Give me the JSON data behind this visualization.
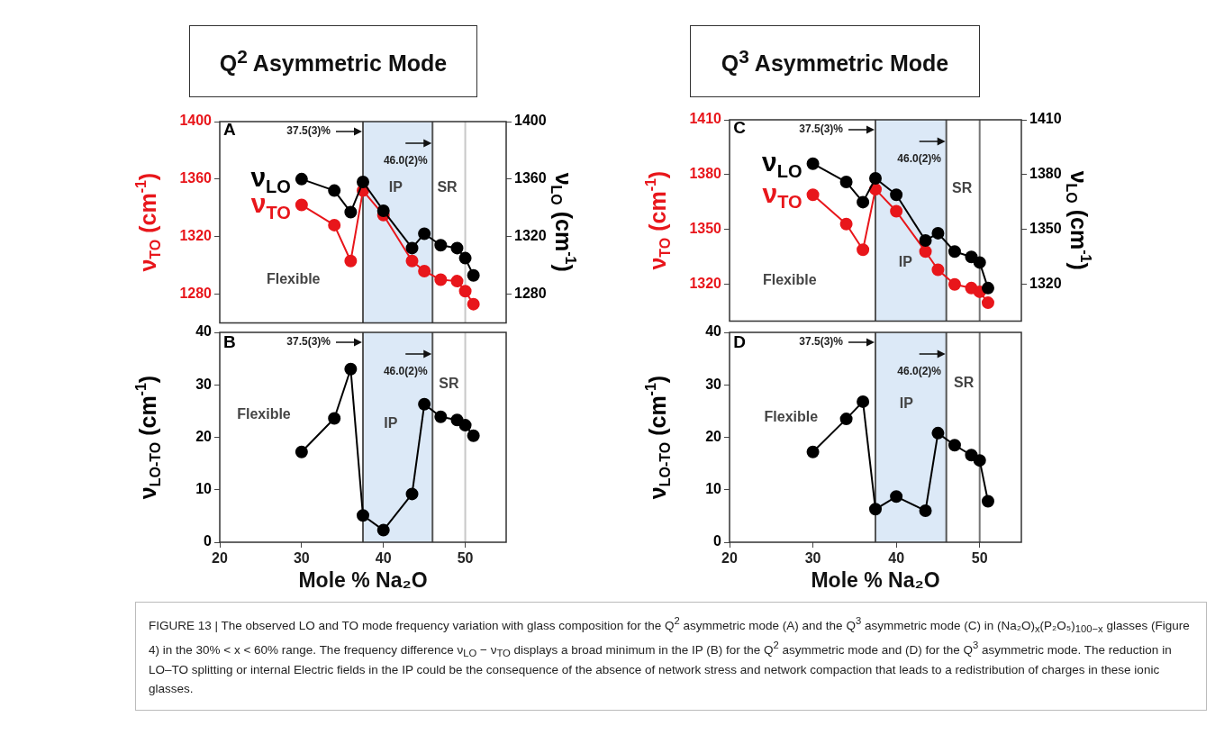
{
  "chart_data": [
    {
      "type": "line",
      "title": "Q$^{2}$ Asymmetric Mode",
      "x": [
        30,
        34,
        36,
        37.5,
        40,
        43.5,
        45,
        47,
        49,
        50,
        51
      ],
      "xlim": [
        20,
        55
      ],
      "xticks": [
        20,
        30,
        40,
        50
      ],
      "ylim": [
        1260,
        1400
      ],
      "yticks": [
        1280,
        1320,
        1360,
        1400
      ],
      "y2lim": [
        1260,
        1400
      ],
      "y2ticks": [
        1280,
        1320,
        1360,
        1400
      ],
      "ylabel": "ν$_{TO}$ (cm$^{-1}$)",
      "y2label": "ν$_{LO}$ (cm$^{-1}$)",
      "tick_labels": "y",
      "marker": "circle",
      "grid": false,
      "legend": false,
      "series": [
        {
          "name": "ν$_{LO}$",
          "color": "#000000",
          "axis": "y2",
          "values": [
            1360,
            1352,
            1337,
            1358,
            1338,
            1312,
            1322,
            1314,
            1312,
            1305,
            1293
          ]
        },
        {
          "name": "ν$_{TO}$",
          "color": "#e8161b",
          "values": [
            1342,
            1328,
            1303,
            1352,
            1335,
            1303,
            1296,
            1290,
            1289,
            1282,
            1273
          ]
        }
      ],
      "bands": [
        {
          "axis": "x",
          "from": 37.5,
          "to": 46,
          "color": "#dce9f7"
        }
      ],
      "ref_lines": [
        {
          "axis": "x",
          "value": 37.5,
          "label": "37.5(3)%",
          "color": "#555555"
        },
        {
          "axis": "x",
          "value": 46,
          "label": "46.0(2)%",
          "color": "#555555"
        },
        {
          "axis": "x",
          "value": 50,
          "color": "#c8c8c8"
        }
      ],
      "annotations": [
        "A",
        "Flexible",
        "IP",
        "SR"
      ]
    },
    {
      "type": "line",
      "x": [
        30,
        34,
        36,
        37.5,
        40,
        43.5,
        45,
        47,
        49,
        50,
        51
      ],
      "xlim": [
        20,
        55
      ],
      "xticks": [
        20,
        30,
        40,
        50
      ],
      "ylim": [
        0,
        40
      ],
      "yticks": [
        0,
        10,
        20,
        30,
        40
      ],
      "xlabel": "Mole % Na₂O",
      "ylabel": "ν$_{LO-TO}$ (cm$^{-1}$)",
      "marker": "circle",
      "grid": false,
      "legend": false,
      "series": [
        {
          "color": "#000000",
          "values": [
            17.2,
            23.6,
            33.0,
            5.1,
            2.3,
            9.2,
            26.3,
            23.9,
            23.3,
            22.3,
            20.3
          ]
        }
      ],
      "bands": [
        {
          "axis": "x",
          "from": 37.5,
          "to": 46,
          "color": "#dce9f7"
        }
      ],
      "ref_lines": [
        {
          "axis": "x",
          "value": 37.5,
          "label": "37.5(3)%",
          "color": "#555555"
        },
        {
          "axis": "x",
          "value": 46,
          "label": "46.0(2)%",
          "color": "#555555"
        },
        {
          "axis": "x",
          "value": 50,
          "color": "#c8c8c8"
        }
      ],
      "annotations": [
        "B",
        "Flexible",
        "IP",
        "SR"
      ]
    },
    {
      "type": "line",
      "title": "Q$^{3}$ Asymmetric Mode",
      "x": [
        30,
        34,
        36,
        37.5,
        40,
        43.5,
        45,
        47,
        49,
        50,
        51
      ],
      "xlim": [
        20,
        55
      ],
      "xticks": [
        20,
        30,
        40,
        50
      ],
      "ylim": [
        1300,
        1410
      ],
      "yticks": [
        1320,
        1350,
        1380,
        1410
      ],
      "y2lim": [
        1300,
        1410
      ],
      "y2ticks": [
        1320,
        1350,
        1380,
        1410
      ],
      "ylabel": "ν$_{TO}$ (cm$^{-1}$)",
      "y2label": "ν$_{LO}$ (cm$^{-1}$)",
      "tick_labels": "y",
      "marker": "circle",
      "grid": false,
      "legend": false,
      "series": [
        {
          "name": "ν$_{LO}$",
          "color": "#000000",
          "axis": "y2",
          "values": [
            1386,
            1376,
            1365,
            1378,
            1369,
            1344,
            1348,
            1338,
            1335,
            1332,
            1318
          ]
        },
        {
          "name": "ν$_{TO}$",
          "color": "#e8161b",
          "values": [
            1369,
            1353,
            1339,
            1372,
            1360,
            1338,
            1328,
            1320,
            1318,
            1316,
            1310
          ]
        }
      ],
      "bands": [
        {
          "axis": "x",
          "from": 37.5,
          "to": 46,
          "color": "#dce9f7"
        }
      ],
      "ref_lines": [
        {
          "axis": "x",
          "value": 37.5,
          "label": "37.5(3)%",
          "color": "#555555"
        },
        {
          "axis": "x",
          "value": 46,
          "label": "46.0(2)%",
          "color": "#555555"
        },
        {
          "axis": "x",
          "value": 50,
          "color": "#777777"
        }
      ],
      "annotations": [
        "C",
        "Flexible",
        "IP",
        "SR"
      ]
    },
    {
      "type": "line",
      "x": [
        30,
        34,
        36,
        37.5,
        40,
        43.5,
        45,
        47,
        49,
        50,
        51
      ],
      "xlim": [
        20,
        55
      ],
      "xticks": [
        20,
        30,
        40,
        50
      ],
      "ylim": [
        0,
        40
      ],
      "yticks": [
        0,
        10,
        20,
        30,
        40
      ],
      "xlabel": "Mole % Na₂O",
      "ylabel": "ν$_{LO-TO}$ (cm$^{-1}$)",
      "marker": "circle",
      "grid": false,
      "legend": false,
      "series": [
        {
          "color": "#000000",
          "values": [
            17.2,
            23.5,
            26.8,
            6.3,
            8.7,
            6.0,
            20.8,
            18.5,
            16.6,
            15.6,
            7.8
          ]
        }
      ],
      "bands": [
        {
          "axis": "x",
          "from": 37.5,
          "to": 46,
          "color": "#dce9f7"
        }
      ],
      "ref_lines": [
        {
          "axis": "x",
          "value": 37.5,
          "label": "37.5(3)%",
          "color": "#555555"
        },
        {
          "axis": "x",
          "value": 46,
          "label": "46.0(2)%",
          "color": "#555555"
        },
        {
          "axis": "x",
          "value": 50,
          "color": "#777777"
        }
      ],
      "annotations": [
        "D",
        "Flexible",
        "IP",
        "SR"
      ]
    },
    {
      "type": "other",
      "annotations": [
        "FIGURE 13 | The observed LO and TO mode frequency variation with glass composition for the Q$^{2}$ asymmetric mode (A) and the Q$^{3}$ asymmetric mode (C) in (Na₂O)$_{x}$(P₂O₅)$_{100−x}$ glasses (Figure 4) in the 30% < x < 60% range. The frequency difference ν$_{LO}$ − ν$_{TO}$ displays a broad minimum in the IP (B) for the Q$^{2}$ asymmetric mode and (D) for the Q$^{3}$ asymmetric mode. The reduction in LO–TO splitting or internal Electric fields in the IP could be the consequence of the absence of network stress and network compaction that leads to a redistribution of charges in these ionic glasses."
      ]
    }
  ]
}
